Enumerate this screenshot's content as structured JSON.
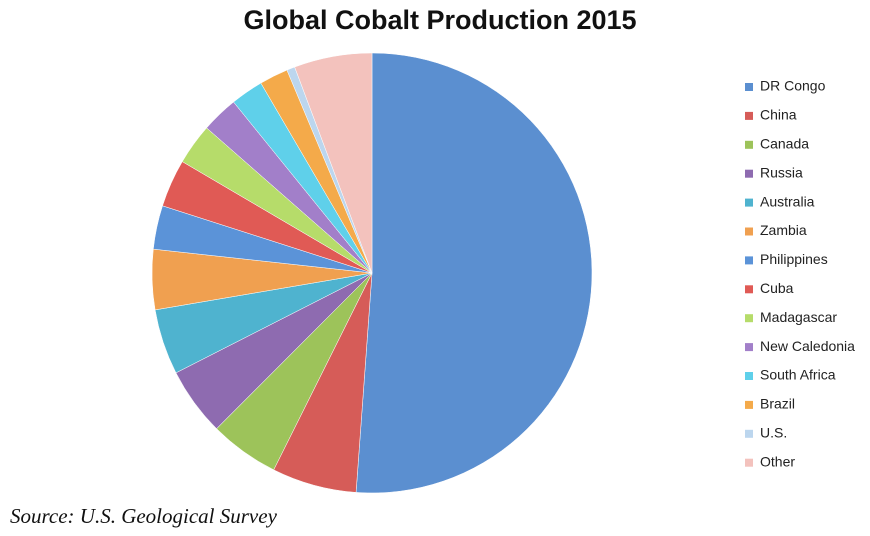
{
  "chart_data": {
    "type": "pie",
    "title": "Global Cobalt Production 2015",
    "source": "Source: U.S. Geological Survey",
    "categories": [
      "DR Congo",
      "China",
      "Canada",
      "Russia",
      "Australia",
      "Zambia",
      "Philippines",
      "Cuba",
      "Madagascar",
      "New Caledonia",
      "South Africa",
      "Brazil",
      "U.S.",
      "Other"
    ],
    "values": [
      51,
      6.2,
      5.1,
      5,
      4.8,
      4.4,
      3.2,
      3.5,
      3,
      2.7,
      2.4,
      2.1,
      0.6,
      5.7
    ],
    "colors": [
      "#5b8fd0",
      "#d65c58",
      "#9dc35a",
      "#8e6bb0",
      "#4fb3cf",
      "#f0a050",
      "#5b93d8",
      "#e05a55",
      "#b6dc6a",
      "#a27fc9",
      "#5fd0ea",
      "#f4aa4a",
      "#bcd6ee",
      "#f3c2bd"
    ],
    "legend": "right"
  }
}
